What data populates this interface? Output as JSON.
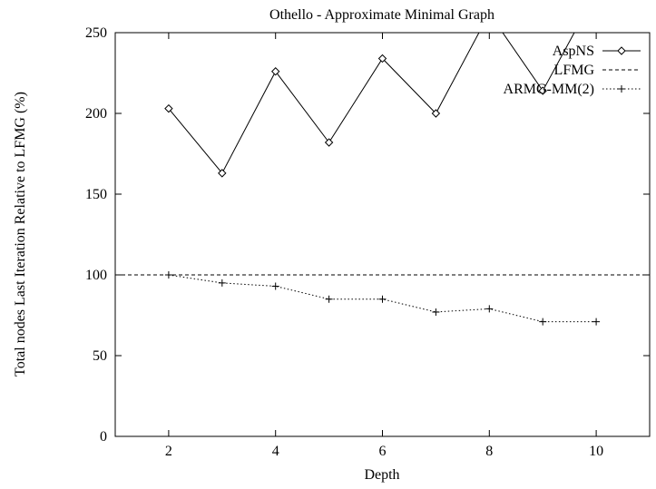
{
  "chart_data": {
    "type": "line",
    "title": "Othello - Approximate Minimal Graph",
    "xlabel": "Depth",
    "ylabel": "Total nodes Last Iteration Relative to LFMG (%)",
    "xlim": [
      1,
      11
    ],
    "ylim": [
      0,
      250
    ],
    "xticks": [
      2,
      4,
      6,
      8,
      10
    ],
    "yticks": [
      0,
      50,
      100,
      150,
      200,
      250
    ],
    "grid": false,
    "legend_position": "top-right",
    "series": [
      {
        "name": "AspNS",
        "style": "solid",
        "marker": "diamond",
        "x": [
          2,
          3,
          4,
          5,
          6,
          7,
          8,
          9,
          10
        ],
        "y": [
          203,
          163,
          226,
          182,
          234,
          200,
          262,
          214,
          275
        ]
      },
      {
        "name": "LFMG",
        "style": "dashed",
        "marker": "none",
        "x": [
          1,
          11
        ],
        "y": [
          100,
          100
        ]
      },
      {
        "name": "ARMG-MM(2)",
        "style": "dotted",
        "marker": "plus",
        "x": [
          2,
          3,
          4,
          5,
          6,
          7,
          8,
          9,
          10
        ],
        "y": [
          100,
          95,
          93,
          85,
          85,
          77,
          79,
          71,
          71
        ]
      }
    ]
  }
}
